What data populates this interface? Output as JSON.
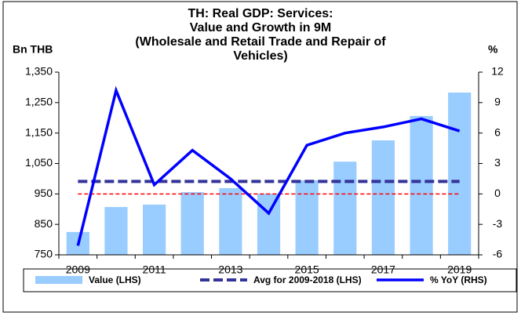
{
  "chart_data": {
    "type": "bar_line",
    "title": [
      "TH: Real GDP: Services:",
      "Value and Growth in 9M",
      "(Wholesale and Retail Trade and Repair of",
      "Vehicles)"
    ],
    "ylabel": "Bn THB",
    "y2label": "%",
    "categories": [
      "2009",
      null,
      "2011",
      null,
      "2013",
      null,
      "2015",
      null,
      "2017",
      null,
      "2019"
    ],
    "series": [
      {
        "name": "Value (LHS)",
        "type": "bar",
        "color": "#99ccff",
        "axis": "y",
        "values": [
          825,
          907,
          915,
          956,
          969,
          951,
          995,
          1056,
          1126,
          1206,
          1283
        ]
      },
      {
        "name": "Avg for 2009-2018 (LHS)",
        "type": "dashed-line",
        "color": "#333399",
        "axis": "y",
        "values": [
          991,
          991,
          991,
          991,
          991,
          991,
          991,
          991,
          991,
          991,
          991
        ]
      },
      {
        "name": "% YoY (RHS)",
        "type": "line",
        "color": "#0000ff",
        "axis": "y2",
        "values": [
          -5.1,
          10.2,
          0.9,
          4.3,
          1.5,
          -1.9,
          4.8,
          6.0,
          6.6,
          7.4,
          6.2
        ]
      }
    ],
    "reference_line": {
      "axis": "y2",
      "value": 0,
      "color": "#ff0000"
    },
    "ylim": [
      750,
      1350
    ],
    "yticks": [
      750,
      850,
      950,
      {
        "value": 1050,
        "label": "1,050"
      },
      {
        "value": 1150,
        "label": "1,150"
      },
      {
        "value": 1250,
        "label": "1,250"
      },
      {
        "value": 1350,
        "label": "1,350"
      }
    ],
    "y2lim": [
      -6,
      12
    ],
    "y2ticks": [
      -6,
      -3,
      0,
      3,
      6,
      9,
      12
    ],
    "legend": "bottom"
  }
}
